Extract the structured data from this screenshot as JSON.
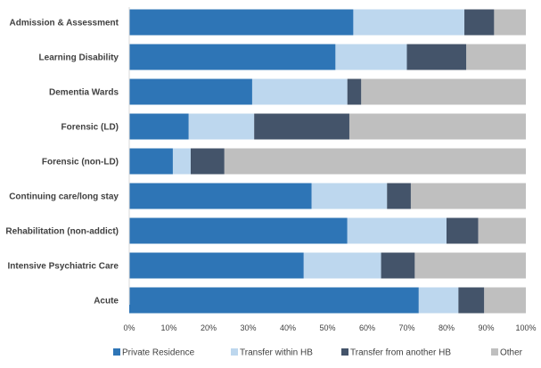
{
  "chart_data": {
    "type": "bar",
    "orientation": "horizontal",
    "stacked": true,
    "categories": [
      "Admission & Assessment",
      "Learning Disability",
      "Dementia Wards",
      "Forensic (LD)",
      "Forensic (non-LD)",
      "Continuing care/long stay",
      "Rehabilitation (non-addict)",
      "Intensive Psychiatric Care",
      "Acute"
    ],
    "series": [
      {
        "name": "Private Residence",
        "color": "#2e75b6",
        "values": [
          56.5,
          52,
          31,
          15,
          11,
          46,
          55,
          44,
          73
        ]
      },
      {
        "name": "Transfer within HB",
        "color": "#bdd7ee",
        "values": [
          28,
          18,
          24,
          16.5,
          4.5,
          19,
          25,
          19.5,
          10
        ]
      },
      {
        "name": "Transfer from another HB",
        "color": "#44546a",
        "values": [
          7.5,
          15,
          3.5,
          24,
          8.5,
          6,
          8,
          8.5,
          6.5
        ]
      },
      {
        "name": "Other",
        "color": "#bfbfbf",
        "values": [
          8,
          15,
          41.5,
          44.5,
          76,
          29,
          12,
          28,
          10.5
        ]
      }
    ],
    "xlim": [
      0,
      100
    ],
    "x_ticks": [
      "0%",
      "10%",
      "20%",
      "30%",
      "40%",
      "50%",
      "60%",
      "70%",
      "80%",
      "90%",
      "100%"
    ],
    "grid": false,
    "legend": "bottom"
  }
}
